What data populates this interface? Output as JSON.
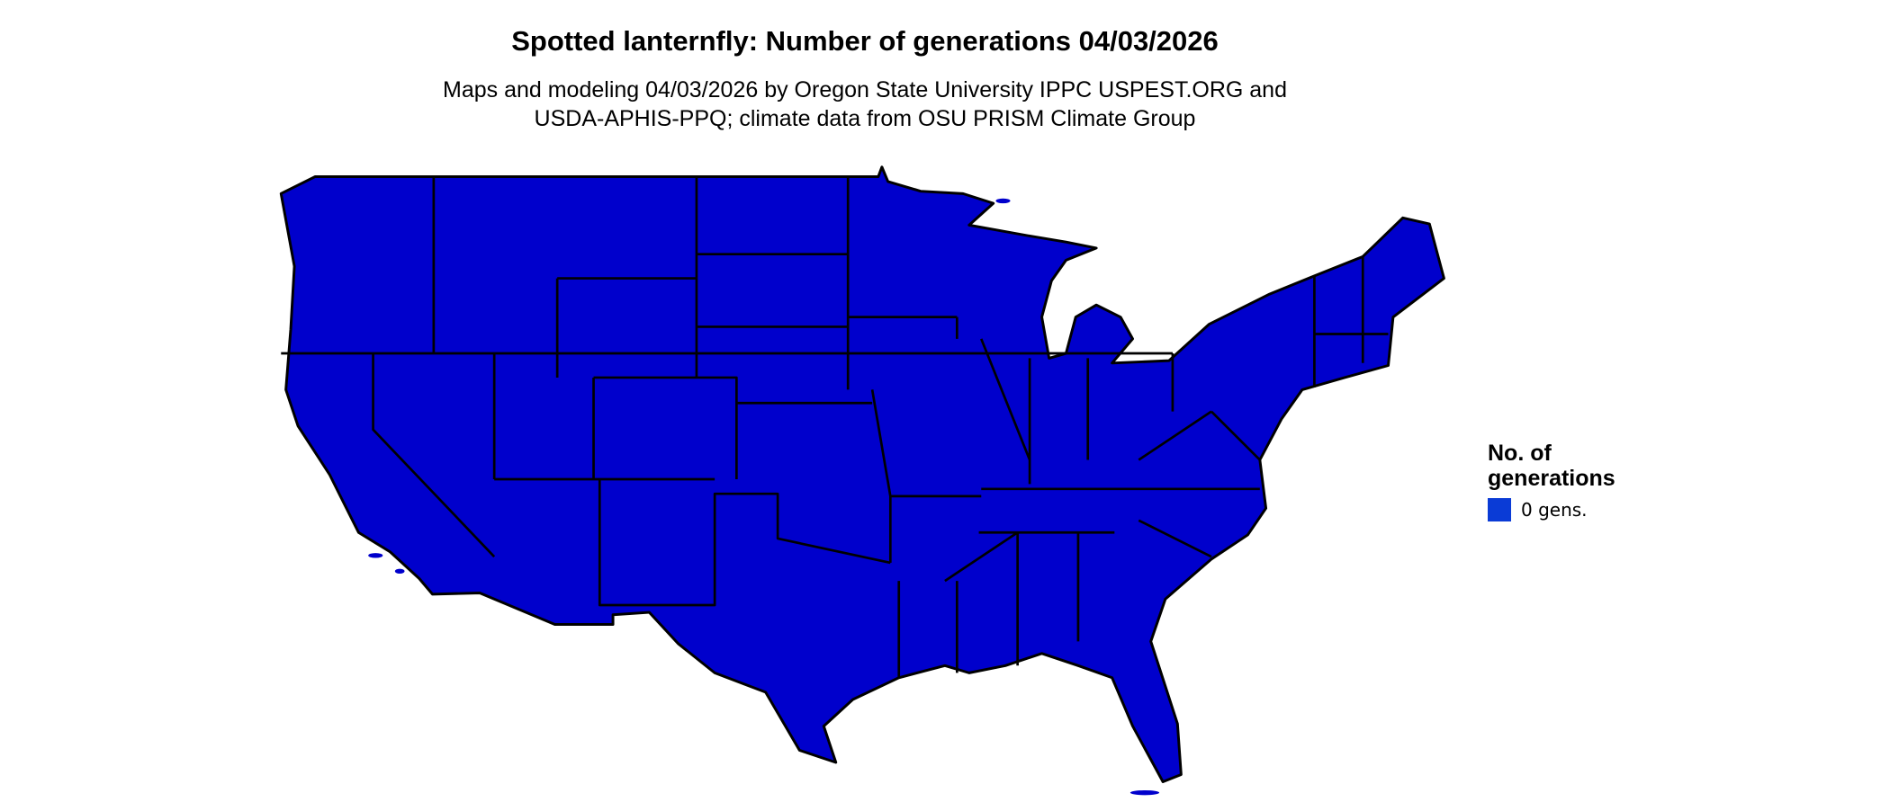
{
  "header": {
    "title": "Spotted lanternfly: Number of generations 04/03/2026",
    "subtitle": [
      "Maps and modeling 04/03/2026 by Oregon State University IPPC USPEST.ORG and",
      "USDA-APHIS-PPQ; climate data from OSU PRISM Climate Group"
    ]
  },
  "legend": {
    "title": [
      "No. of",
      "generations"
    ],
    "items": [
      {
        "label": "0 gens.",
        "color": "#0a3bd6"
      }
    ]
  }
}
